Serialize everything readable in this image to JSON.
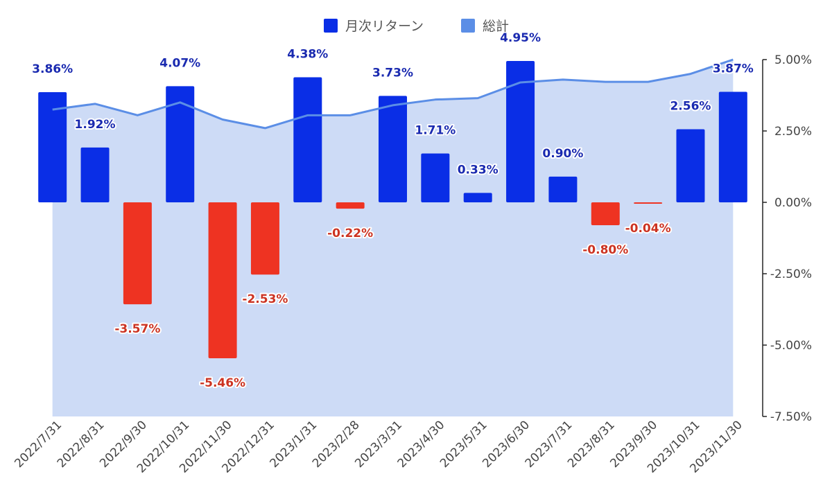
{
  "chart_data": {
    "type": "bar",
    "categories": [
      "2022/7/31",
      "2022/8/31",
      "2022/9/30",
      "2022/10/31",
      "2022/11/30",
      "2022/12/31",
      "2023/1/31",
      "2023/2/28",
      "2023/3/31",
      "2023/4/30",
      "2023/5/31",
      "2023/6/30",
      "2023/7/31",
      "2023/8/31",
      "2023/9/30",
      "2023/10/31",
      "2023/11/30"
    ],
    "series": [
      {
        "name": "月次リターン",
        "type": "bar",
        "values": [
          3.86,
          1.92,
          -3.57,
          4.07,
          -5.46,
          -2.53,
          4.38,
          -0.22,
          3.73,
          1.71,
          0.33,
          4.95,
          0.9,
          -0.8,
          -0.04,
          2.56,
          3.87
        ],
        "labels": [
          "3.86%",
          "1.92%",
          "-3.57%",
          "4.07%",
          "-5.46%",
          "-2.53%",
          "4.38%",
          "-0.22%",
          "3.73%",
          "1.71%",
          "0.33%",
          "4.95%",
          "0.90%",
          "-0.80%",
          "-0.04%",
          "2.56%",
          "3.87%"
        ],
        "color_positive": "#0a2ee6",
        "color_negative": "#ee3322",
        "label_color_positive": "#1a2ab0",
        "label_color_negative": "#cc3322"
      },
      {
        "name": "総計",
        "type": "area",
        "values": [
          3.25,
          3.45,
          3.05,
          3.5,
          2.9,
          2.6,
          3.05,
          3.05,
          3.4,
          3.6,
          3.65,
          4.2,
          4.3,
          4.22,
          4.22,
          4.5,
          5.0
        ],
        "line_color": "#5b8ee6",
        "fill_color": "#cddbf6"
      }
    ],
    "y_axis": {
      "position": "right",
      "ticks": [
        5.0,
        2.5,
        0.0,
        -2.5,
        -5.0,
        -7.5
      ],
      "tick_labels": [
        "5.00%",
        "2.50%",
        "0.00%",
        "-2.50%",
        "-5.00%",
        "-7.50%"
      ],
      "ylim": [
        -7.5,
        5.0
      ]
    },
    "legend": {
      "placement": "top-center"
    },
    "grid": false
  }
}
